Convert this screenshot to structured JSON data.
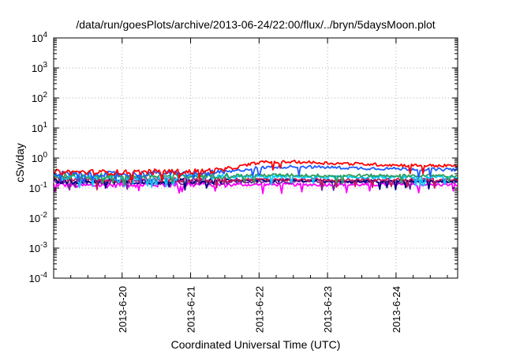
{
  "chart_data": {
    "type": "line",
    "title": "/data/run/goesPlots/archive/2013-06-24/22:00/flux/../bryn/5daysMoon.plot",
    "xlabel": "Coordinated Universal Time (UTC)",
    "ylabel": "cSv/day",
    "x_start": "2013-06-19",
    "x_range_days": [
      0.0,
      5.9
    ],
    "xticks": [
      {
        "day": 1,
        "label": "2013-6-20"
      },
      {
        "day": 2,
        "label": "2013-6-21"
      },
      {
        "day": 3,
        "label": "2013-6-22"
      },
      {
        "day": 4,
        "label": "2013-6-23"
      },
      {
        "day": 5,
        "label": "2013-6-24"
      }
    ],
    "yscale": "log",
    "ylim": [
      0.0001,
      10000
    ],
    "yticks": [
      {
        "base": "10",
        "exp": "4",
        "value": 10000
      },
      {
        "base": "10",
        "exp": "3",
        "value": 1000
      },
      {
        "base": "10",
        "exp": "2",
        "value": 100
      },
      {
        "base": "10",
        "exp": "1",
        "value": 10
      },
      {
        "base": "10",
        "exp": "0",
        "value": 1
      },
      {
        "base": "10",
        "exp": "-1",
        "value": 0.1
      },
      {
        "base": "10",
        "exp": "-2",
        "value": 0.01
      },
      {
        "base": "10",
        "exp": "-3",
        "value": 0.001
      },
      {
        "base": "10",
        "exp": "-4",
        "value": 0.0001
      }
    ],
    "grid": true,
    "series": [
      {
        "color": "#ff00ff",
        "x": [
          0.0,
          0.5,
          1.0,
          1.5,
          2.0,
          2.5,
          3.0,
          3.5,
          4.0,
          4.5,
          5.0,
          5.5,
          5.9
        ],
        "y": [
          0.13,
          0.12,
          0.13,
          0.13,
          0.13,
          0.13,
          0.13,
          0.13,
          0.13,
          0.13,
          0.13,
          0.13,
          0.13
        ]
      },
      {
        "color": "#7b1fa2",
        "x": [
          0.0,
          0.5,
          1.0,
          1.5,
          2.0,
          2.5,
          3.0,
          3.5,
          4.0,
          4.5,
          5.0,
          5.5,
          5.9
        ],
        "y": [
          0.16,
          0.15,
          0.16,
          0.16,
          0.16,
          0.16,
          0.16,
          0.16,
          0.16,
          0.16,
          0.16,
          0.16,
          0.16
        ]
      },
      {
        "color": "#000080",
        "x": [
          0.0,
          0.5,
          1.0,
          1.5,
          2.0,
          2.5,
          3.0,
          3.5,
          4.0,
          4.5,
          5.0,
          5.5,
          5.9
        ],
        "y": [
          0.17,
          0.17,
          0.17,
          0.17,
          0.17,
          0.17,
          0.18,
          0.18,
          0.17,
          0.17,
          0.17,
          0.17,
          0.17
        ]
      },
      {
        "color": "#c2185b",
        "x": [
          0.0,
          0.5,
          1.0,
          1.5,
          2.0,
          2.5,
          3.0,
          3.5,
          4.0,
          4.5,
          5.0,
          5.5,
          5.9
        ],
        "y": [
          0.19,
          0.19,
          0.19,
          0.19,
          0.19,
          0.19,
          0.19,
          0.19,
          0.19,
          0.19,
          0.19,
          0.19,
          0.19
        ]
      },
      {
        "color": "#00ccff",
        "x": [
          0.0,
          0.5,
          1.0,
          1.5,
          2.0,
          2.5,
          3.0,
          3.5,
          4.0,
          4.5,
          5.0,
          5.5,
          5.9
        ],
        "y": [
          0.22,
          0.22,
          0.22,
          0.22,
          0.22,
          0.23,
          0.24,
          0.24,
          0.23,
          0.23,
          0.23,
          0.23,
          0.23
        ]
      },
      {
        "color": "#2e9e5b",
        "x": [
          0.0,
          0.5,
          1.0,
          1.5,
          2.0,
          2.5,
          3.0,
          3.5,
          4.0,
          4.5,
          5.0,
          5.5,
          5.9
        ],
        "y": [
          0.25,
          0.25,
          0.25,
          0.25,
          0.25,
          0.26,
          0.27,
          0.27,
          0.26,
          0.26,
          0.26,
          0.26,
          0.26
        ]
      },
      {
        "color": "#1e5bff",
        "x": [
          0.0,
          0.5,
          1.0,
          1.5,
          2.0,
          2.5,
          3.0,
          3.5,
          4.0,
          4.5,
          5.0,
          5.5,
          5.9
        ],
        "y": [
          0.3,
          0.3,
          0.29,
          0.31,
          0.3,
          0.33,
          0.48,
          0.52,
          0.49,
          0.46,
          0.44,
          0.42,
          0.41
        ]
      },
      {
        "color": "#ff0000",
        "x": [
          0.0,
          0.5,
          1.0,
          1.5,
          2.0,
          2.5,
          3.0,
          3.5,
          4.0,
          4.5,
          5.0,
          5.5,
          5.9
        ],
        "y": [
          0.34,
          0.34,
          0.33,
          0.35,
          0.35,
          0.4,
          0.72,
          0.75,
          0.68,
          0.63,
          0.58,
          0.56,
          0.55
        ]
      }
    ]
  }
}
